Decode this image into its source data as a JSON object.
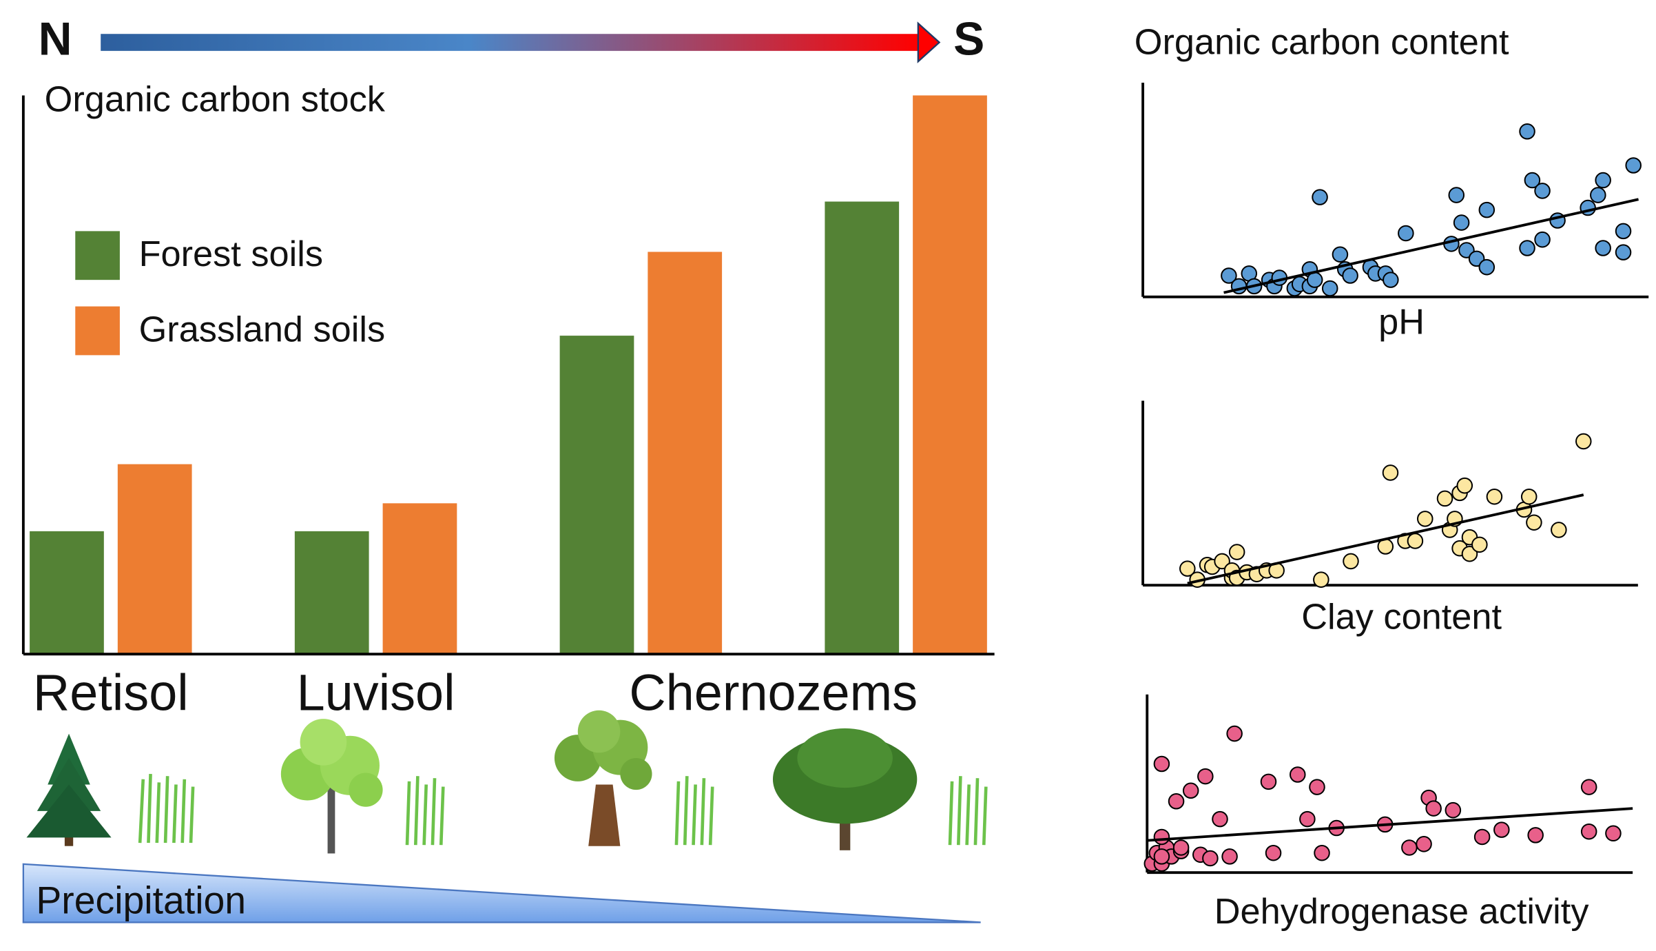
{
  "chart_data": [
    {
      "type": "bar",
      "ylabel": "Organic carbon stock",
      "annotations": [
        "N",
        "S",
        "Precipitation"
      ],
      "categories": [
        "Retisol",
        "Luvisol",
        "Chernozems",
        null
      ],
      "ylim": [
        0,
        100
      ],
      "legend": "upper left",
      "series": [
        {
          "name": "Forest soils",
          "color": "#548235",
          "values": [
            22,
            22,
            57,
            81
          ]
        },
        {
          "name": "Grassland soils",
          "color": "#ed7d31",
          "values": [
            34,
            27,
            72,
            100
          ]
        }
      ]
    },
    {
      "type": "scatter",
      "ylabel": "Organic carbon content",
      "xlabel": "pH",
      "xlim": [
        0,
        100
      ],
      "ylim": [
        0,
        100
      ],
      "color": "#5b9bd5",
      "x": [
        17,
        19,
        21,
        22,
        25,
        26,
        27,
        30,
        31,
        33,
        33,
        35,
        34,
        37,
        39,
        40,
        41,
        45,
        46,
        48,
        49,
        52,
        61,
        62,
        63,
        64,
        66,
        68,
        68,
        76,
        77,
        76,
        79,
        79,
        82,
        88,
        90,
        91,
        91,
        95,
        95,
        97
      ],
      "values": [
        10,
        5,
        11,
        5,
        8,
        5,
        9,
        4,
        6,
        5,
        13,
        47,
        8,
        4,
        20,
        13,
        10,
        14,
        11,
        11,
        8,
        30,
        25,
        48,
        35,
        22,
        18,
        41,
        14,
        78,
        55,
        23,
        27,
        50,
        36,
        42,
        48,
        55,
        23,
        31,
        21,
        62
      ],
      "trend": {
        "x": [
          16,
          98
        ],
        "values": [
          2,
          46
        ]
      }
    },
    {
      "type": "scatter",
      "xlabel": "Clay content",
      "xlim": [
        0,
        100
      ],
      "ylim": [
        0,
        100
      ],
      "color": "#fce7a1",
      "x": [
        9,
        11,
        13,
        14,
        16,
        18,
        18,
        19,
        19,
        21,
        23,
        25,
        27,
        36,
        42,
        49,
        50,
        53,
        55,
        57,
        61,
        62,
        63,
        64,
        65,
        64,
        66,
        66,
        68,
        71,
        77,
        78,
        79,
        84,
        89
      ],
      "values": [
        9,
        3,
        11,
        10,
        13,
        4,
        8,
        18,
        4,
        7,
        6,
        8,
        8,
        3,
        13,
        21,
        61,
        24,
        24,
        36,
        47,
        30,
        36,
        50,
        54,
        20,
        26,
        17,
        22,
        48,
        41,
        48,
        34,
        30,
        78
      ],
      "trend": {
        "x": [
          9,
          89
        ],
        "values": [
          1,
          49
        ]
      }
    },
    {
      "type": "scatter",
      "xlabel": "Dehydrogenase activity",
      "xlim": [
        0,
        100
      ],
      "ylim": [
        0,
        100
      ],
      "color": "#e8608a",
      "x": [
        1,
        2,
        3,
        4,
        5,
        7,
        7,
        3,
        3,
        3,
        6,
        9,
        12,
        11,
        13,
        17,
        15,
        18,
        25,
        26,
        31,
        33,
        35,
        36,
        39,
        49,
        54,
        57,
        58,
        59,
        63,
        69,
        73,
        80,
        91,
        91,
        96
      ],
      "values": [
        5,
        11,
        5,
        14,
        9,
        12,
        14,
        20,
        9,
        61,
        40,
        46,
        54,
        10,
        8,
        9,
        30,
        78,
        51,
        11,
        55,
        30,
        48,
        11,
        25,
        27,
        14,
        16,
        42,
        36,
        35,
        20,
        24,
        21,
        48,
        23,
        22
      ],
      "trend": {
        "x": [
          0,
          100
        ],
        "values": [
          18,
          36
        ]
      }
    }
  ]
}
